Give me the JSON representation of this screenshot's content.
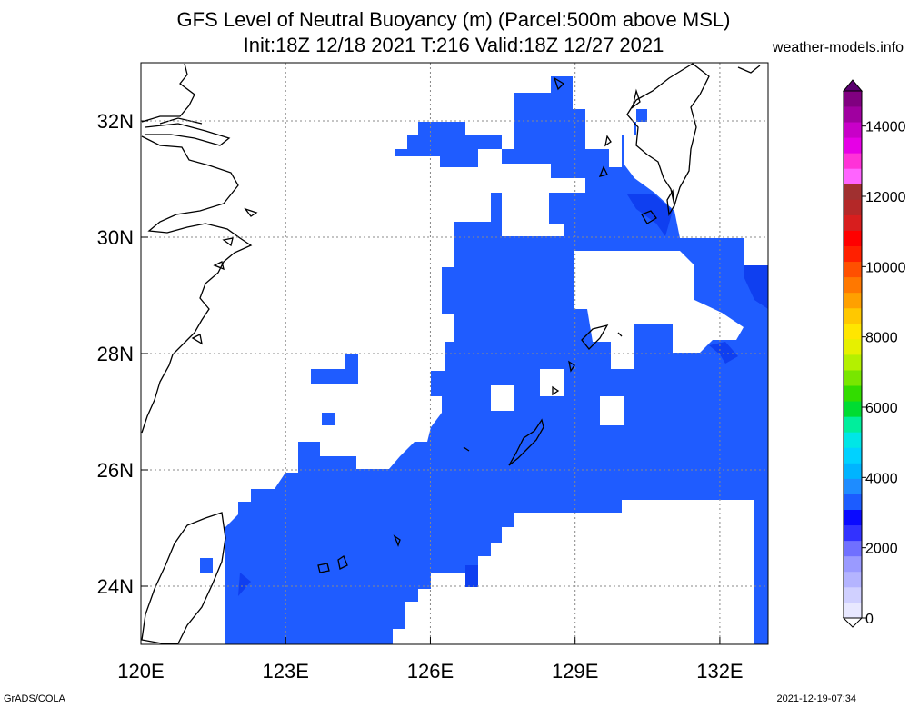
{
  "title": {
    "line1": "GFS Level of Neutral Buoyancy (m) (Parcel:500m above MSL)",
    "line2": "Init:18Z 12/18 2021 T:216 Valid:18Z 12/27 2021"
  },
  "site": "weather-models.info",
  "footer": {
    "left": "GrADS/COLA",
    "right": "2021-12-19-07:34"
  },
  "map": {
    "lon_labels": [
      "120E",
      "123E",
      "126E",
      "129E",
      "132E"
    ],
    "lat_labels": [
      "32N",
      "30N",
      "28N",
      "26N",
      "24N"
    ],
    "lon_ticks": [
      120,
      123,
      126,
      129,
      132
    ],
    "lat_ticks": [
      32,
      30,
      28,
      26,
      24
    ],
    "lon_range": [
      120,
      133
    ],
    "lat_range": [
      23,
      33
    ],
    "grid": "dotted",
    "field_color": "#1f5cff",
    "field_color_dark": "#0f3ff0"
  },
  "colorbar": {
    "labels": [
      "0",
      "2000",
      "4000",
      "6000",
      "8000",
      "10000",
      "12000",
      "14000"
    ],
    "label_values": [
      0,
      2000,
      4000,
      6000,
      8000,
      10000,
      12000,
      14000
    ],
    "range": [
      0,
      15000
    ],
    "colors": [
      "#e8e8ff",
      "#d0d0ff",
      "#b4b4ff",
      "#9a9aff",
      "#7070ff",
      "#3232ff",
      "#0a0aff",
      "#1c5cff",
      "#1e8cff",
      "#00b4ff",
      "#00d2ff",
      "#00e6e6",
      "#00ee9c",
      "#00dc32",
      "#32dc00",
      "#78e600",
      "#b4f000",
      "#e6f000",
      "#ffe600",
      "#ffc800",
      "#ffa000",
      "#ff7800",
      "#ff5000",
      "#ff2000",
      "#ff0000",
      "#d81e1e",
      "#b42828",
      "#a03030",
      "#ff64ff",
      "#ff32d8",
      "#e600e6",
      "#c800c8",
      "#a000a0",
      "#800080"
    ]
  }
}
